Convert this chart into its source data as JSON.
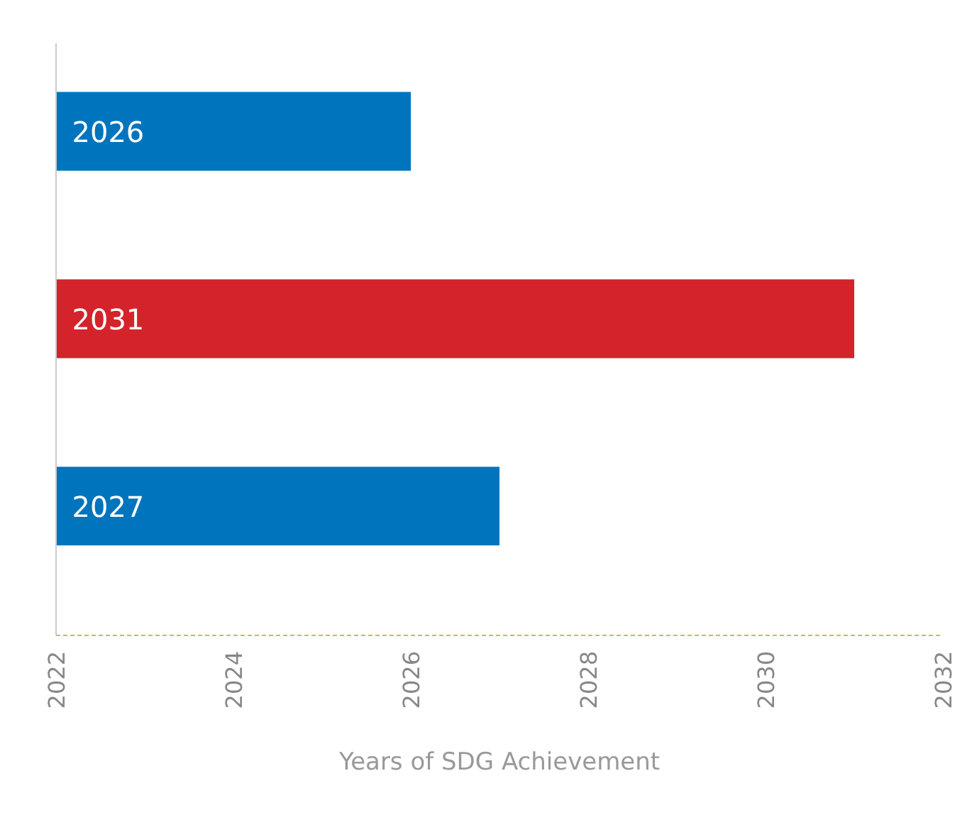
{
  "chart_data": {
    "type": "bar",
    "orientation": "horizontal",
    "categories": [
      null,
      null,
      null
    ],
    "values": [
      2026,
      2031,
      2027
    ],
    "data_labels": true,
    "colors": [
      "#0074bd",
      "#d4232b",
      "#0074bd"
    ],
    "xlim": [
      2022,
      2032
    ],
    "xticks": [
      2022,
      2024,
      2026,
      2028,
      2030,
      2032
    ],
    "xlabel": "Years of SDG Achievement",
    "tick_labels": "x",
    "grid": false
  }
}
